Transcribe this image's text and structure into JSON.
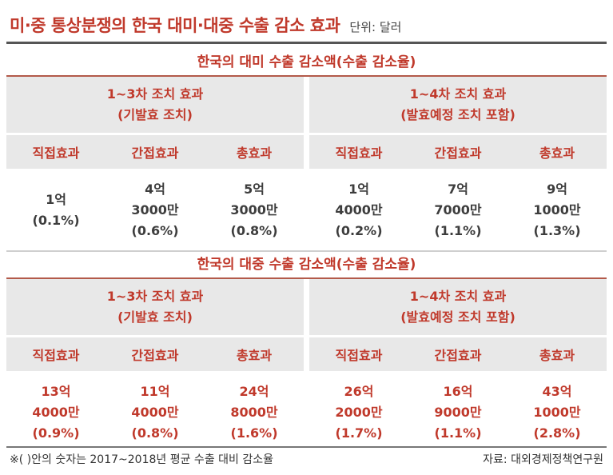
{
  "title": "미·중 통상분쟁의 한국 대미·대중 수출 감소 효과",
  "unit": "단위: 달러",
  "sections": [
    {
      "title": "한국의 대미 수출 감소액(수출 감소율)",
      "groups": [
        {
          "header_line1": "1~3차 조치 효과",
          "header_line2": "(기발효 조치)",
          "columns": [
            "직접효과",
            "간접효과",
            "총효과"
          ],
          "values": [
            {
              "line1": "1억",
              "line2": "(0.1%)",
              "line3": ""
            },
            {
              "line1": "4억",
              "line2": "3000만",
              "line3": "(0.6%)"
            },
            {
              "line1": "5억",
              "line2": "3000만",
              "line3": "(0.8%)"
            }
          ]
        },
        {
          "header_line1": "1~4차 조치 효과",
          "header_line2": "(발효예정 조치 포함)",
          "columns": [
            "직접효과",
            "간접효과",
            "총효과"
          ],
          "values": [
            {
              "line1": "1억",
              "line2": "4000만",
              "line3": "(0.2%)"
            },
            {
              "line1": "7억",
              "line2": "7000만",
              "line3": "(1.1%)"
            },
            {
              "line1": "9억",
              "line2": "1000만",
              "line3": "(1.3%)"
            }
          ]
        }
      ]
    },
    {
      "title": "한국의 대중 수출 감소액(수출 감소율)",
      "groups": [
        {
          "header_line1": "1~3차 조치 효과",
          "header_line2": "(기발효 조치)",
          "columns": [
            "직접효과",
            "간접효과",
            "총효과"
          ],
          "values": [
            {
              "line1": "13억",
              "line2": "4000만",
              "line3": "(0.9%)"
            },
            {
              "line1": "11억",
              "line2": "4000만",
              "line3": "(0.8%)"
            },
            {
              "line1": "24억",
              "line2": "8000만",
              "line3": "(1.6%)"
            }
          ]
        },
        {
          "header_line1": "1~4차 조치 효과",
          "header_line2": "(발효예정 조치 포함)",
          "columns": [
            "직접효과",
            "간접효과",
            "총효과"
          ],
          "values": [
            {
              "line1": "26억",
              "line2": "2000만",
              "line3": "(1.7%)"
            },
            {
              "line1": "16억",
              "line2": "9000만",
              "line3": "(1.1%)"
            },
            {
              "line1": "43억",
              "line2": "1000만",
              "line3": "(2.8%)"
            }
          ]
        }
      ]
    }
  ],
  "footnote": "※(   )안의 숫자는 2017~2018년 평균 수출 대비 감소율",
  "source": "자료: 대외경제정책연구원"
}
